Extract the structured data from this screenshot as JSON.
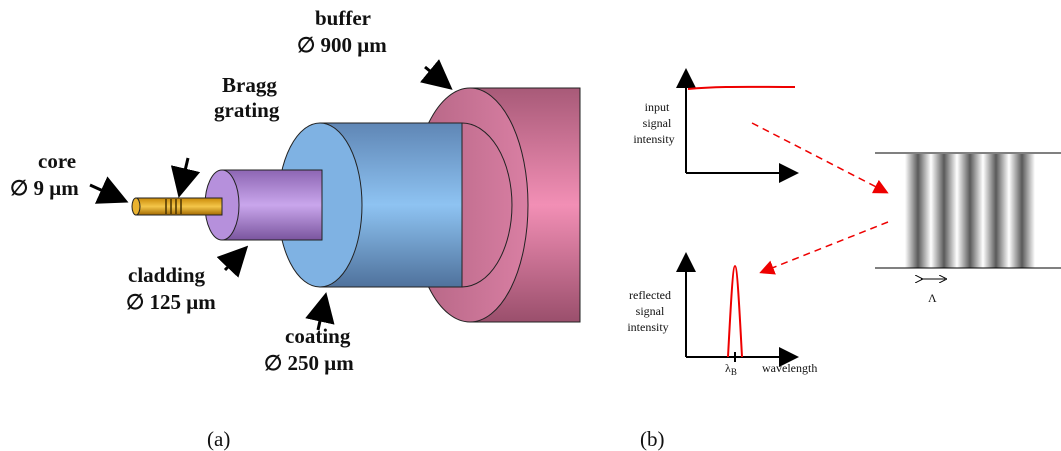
{
  "panel_a": {
    "label": "(a)",
    "buffer": {
      "name": "buffer",
      "diameter": "∅ 900 μm"
    },
    "bragg_grating": {
      "lines": [
        "Bragg",
        "grating"
      ]
    },
    "core": {
      "name": "core",
      "diameter": "∅ 9 μm"
    },
    "cladding": {
      "name": "cladding",
      "diameter": "∅ 125 μm"
    },
    "coating": {
      "name": "coating",
      "diameter": "∅ 250 μm"
    }
  },
  "panel_b": {
    "label": "(b)",
    "input_axis_label": [
      "input",
      "signal",
      "intensity"
    ],
    "reflected_axis_label": [
      "reflected",
      "signal",
      "intensity"
    ],
    "bragg_wavelength": {
      "symbol": "λ",
      "subscript": "B"
    },
    "x_axis_label": "wavelength",
    "period": "Λ"
  }
}
